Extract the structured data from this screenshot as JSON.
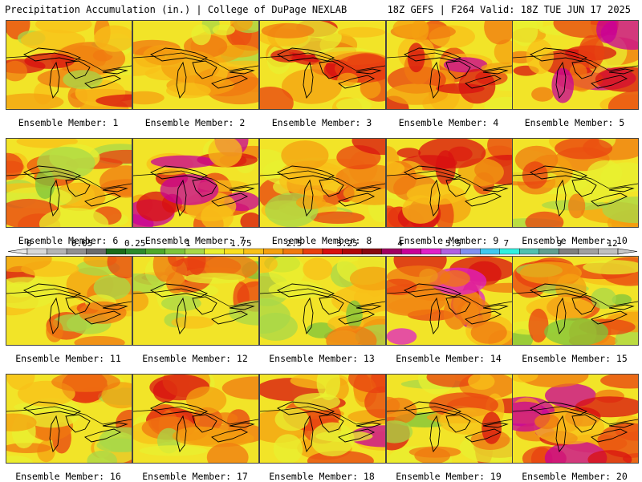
{
  "header": {
    "title_left": "Precipitation Accumulation (in.) | College of DuPage NEXLAB",
    "title_right": "18Z GEFS | F264 Valid: 18Z TUE JUN 17 2025"
  },
  "caption_prefix": "Ensemble Member:",
  "panels": [
    {
      "member": 1,
      "wetness": 0.55
    },
    {
      "member": 2,
      "wetness": 0.35
    },
    {
      "member": 3,
      "wetness": 0.7
    },
    {
      "member": 4,
      "wetness": 0.75
    },
    {
      "member": 5,
      "wetness": 0.8
    },
    {
      "member": 6,
      "wetness": 0.5
    },
    {
      "member": 7,
      "wetness": 0.85
    },
    {
      "member": 8,
      "wetness": 0.6
    },
    {
      "member": 9,
      "wetness": 0.7
    },
    {
      "member": 10,
      "wetness": 0.5
    },
    {
      "member": 11,
      "wetness": 0.55
    },
    {
      "member": 12,
      "wetness": 0.5
    },
    {
      "member": 13,
      "wetness": 0.3
    },
    {
      "member": 14,
      "wetness": 0.9
    },
    {
      "member": 15,
      "wetness": 0.5
    },
    {
      "member": 16,
      "wetness": 0.55
    },
    {
      "member": 17,
      "wetness": 0.65
    },
    {
      "member": 18,
      "wetness": 0.75
    },
    {
      "member": 19,
      "wetness": 0.55
    },
    {
      "member": 20,
      "wetness": 0.85
    }
  ],
  "colorbar": {
    "tick_labels": [
      "0",
      "0.05",
      "0.25",
      "1",
      "1.75",
      "2.5",
      "3.25",
      "4",
      "5.5",
      "7",
      "9",
      "12"
    ],
    "colors": [
      "#d8d8d8",
      "#b4b4b4",
      "#909090",
      "#6c6c6c",
      "#1a6b1a",
      "#2c8a2c",
      "#4ea82a",
      "#7cc43c",
      "#a8d848",
      "#e8f030",
      "#f8e020",
      "#f8c018",
      "#f4a010",
      "#f07810",
      "#e84010",
      "#d81010",
      "#b00808",
      "#880810",
      "#a00060",
      "#c80098",
      "#e020c8",
      "#b060e0",
      "#8090f0",
      "#40c8f0",
      "#30f0e0",
      "#50c0b0",
      "#60a090",
      "#808080",
      "#a0a0a0",
      "#c0c0c0"
    ],
    "accent_colors": {
      "low": "#2c8a2c",
      "mid": "#f0e020",
      "high": "#d81010",
      "extreme": "#e020c8"
    }
  }
}
